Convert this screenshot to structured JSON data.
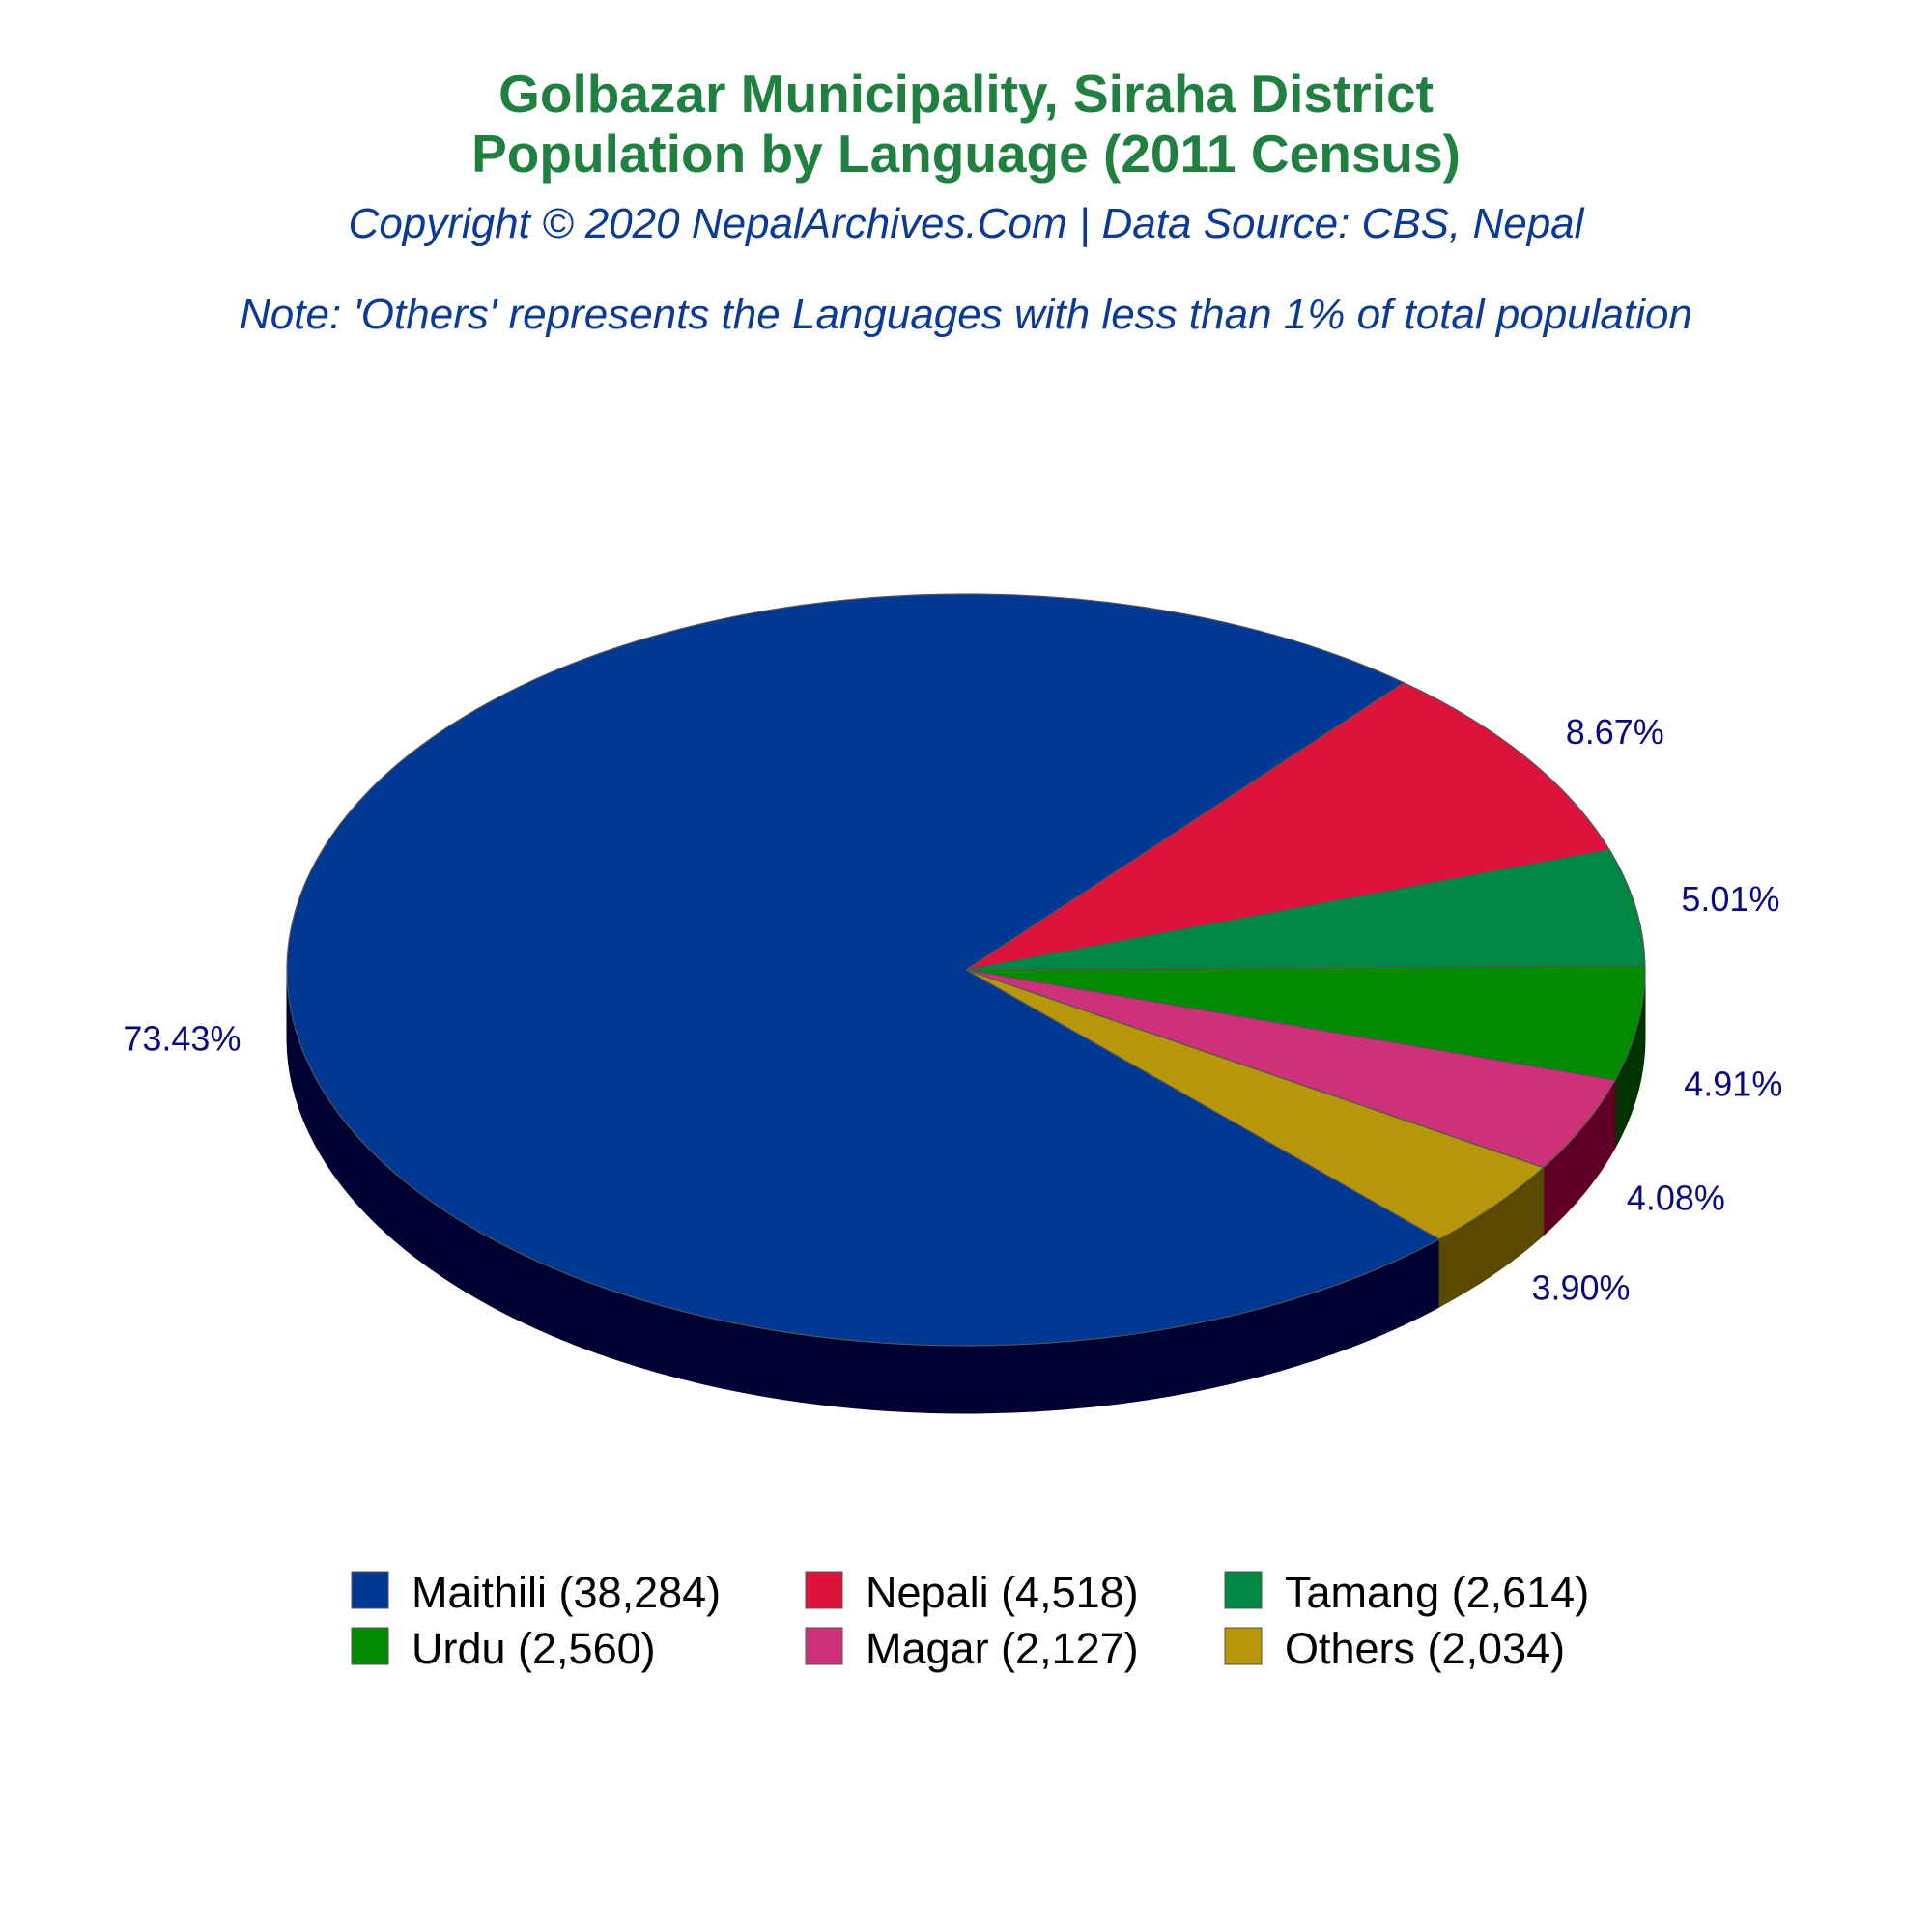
{
  "chart_data": {
    "type": "pie",
    "title_lines": [
      "Golbazar Municipality, Siraha District",
      "Population by Language (2011 Census)"
    ],
    "subtitle": "Copyright © 2020 NepalArchives.Com | Data Source: CBS, Nepal",
    "note": "Note: 'Others' represents the Languages with less than 1% of total population",
    "slices": [
      {
        "name": "Maithili",
        "value": 38284,
        "percent_label": "73.43%",
        "legend_label": "Maithili (38,284)",
        "color": "#003893",
        "side_color": "#000033"
      },
      {
        "name": "Nepali",
        "value": 4518,
        "percent_label": "8.67%",
        "legend_label": "Nepali (4,518)",
        "color": "#dc143c",
        "side_color": "#800000"
      },
      {
        "name": "Tamang",
        "value": 2614,
        "percent_label": "5.01%",
        "legend_label": "Tamang (2,614)",
        "color": "#008744",
        "side_color": "#00331a"
      },
      {
        "name": "Urdu",
        "value": 2560,
        "percent_label": "4.91%",
        "legend_label": "Urdu (2,560)",
        "color": "#008b00",
        "side_color": "#003300"
      },
      {
        "name": "Magar",
        "value": 2127,
        "percent_label": "4.08%",
        "legend_label": "Magar (2,127)",
        "color": "#cd3278",
        "side_color": "#600025"
      },
      {
        "name": "Others",
        "value": 2034,
        "percent_label": "3.90%",
        "legend_label": "Others (2,034)",
        "color": "#b8960a",
        "side_color": "#5a4a00"
      }
    ]
  }
}
